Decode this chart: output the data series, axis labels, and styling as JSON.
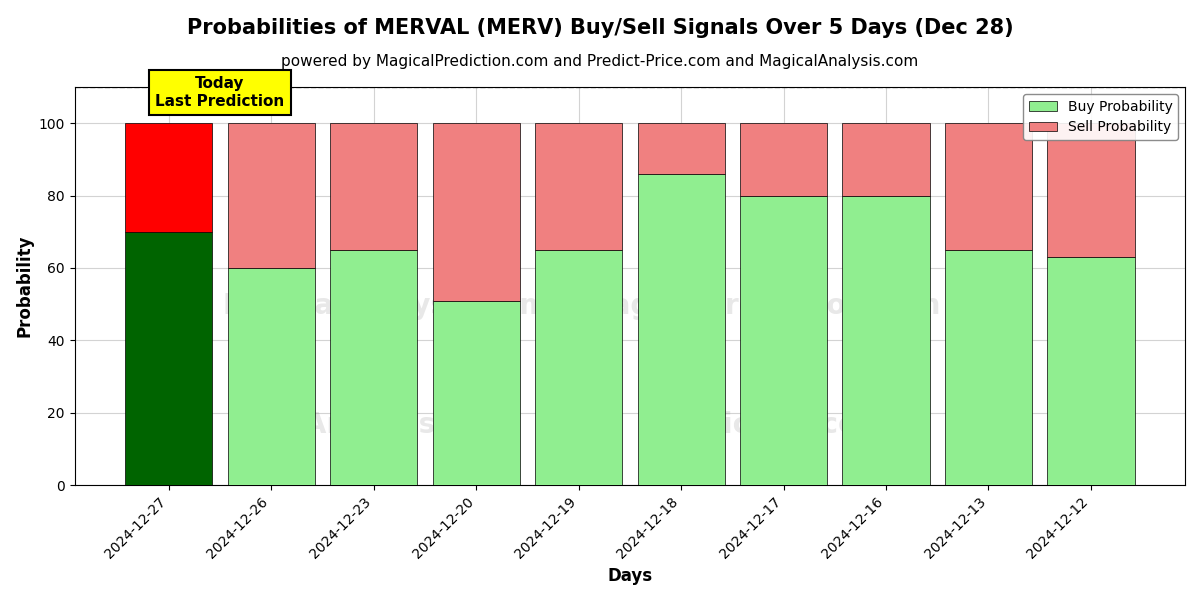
{
  "title": "Probabilities of MERVAL (MERV) Buy/Sell Signals Over 5 Days (Dec 28)",
  "subtitle": "powered by MagicalPrediction.com and Predict-Price.com and MagicalAnalysis.com",
  "xlabel": "Days",
  "ylabel": "Probability",
  "dates": [
    "2024-12-27",
    "2024-12-26",
    "2024-12-23",
    "2024-12-20",
    "2024-12-19",
    "2024-12-18",
    "2024-12-17",
    "2024-12-16",
    "2024-12-13",
    "2024-12-12"
  ],
  "buy_values": [
    70,
    60,
    65,
    51,
    65,
    86,
    80,
    80,
    65,
    63
  ],
  "sell_values": [
    30,
    40,
    35,
    49,
    35,
    14,
    20,
    20,
    35,
    37
  ],
  "today_buy_color": "#006400",
  "today_sell_color": "#FF0000",
  "buy_color": "#90EE90",
  "sell_color": "#F08080",
  "today_annotation_bg": "#FFFF00",
  "today_annotation_text": "Today\nLast Prediction",
  "ylim": [
    0,
    110
  ],
  "yticks": [
    0,
    20,
    40,
    60,
    80,
    100
  ],
  "dashed_line_y": 110,
  "legend_buy_label": "Buy Probability",
  "legend_sell_label": "Sell Probability",
  "title_fontsize": 15,
  "subtitle_fontsize": 11,
  "label_fontsize": 12,
  "tick_fontsize": 10,
  "bar_width": 0.85
}
